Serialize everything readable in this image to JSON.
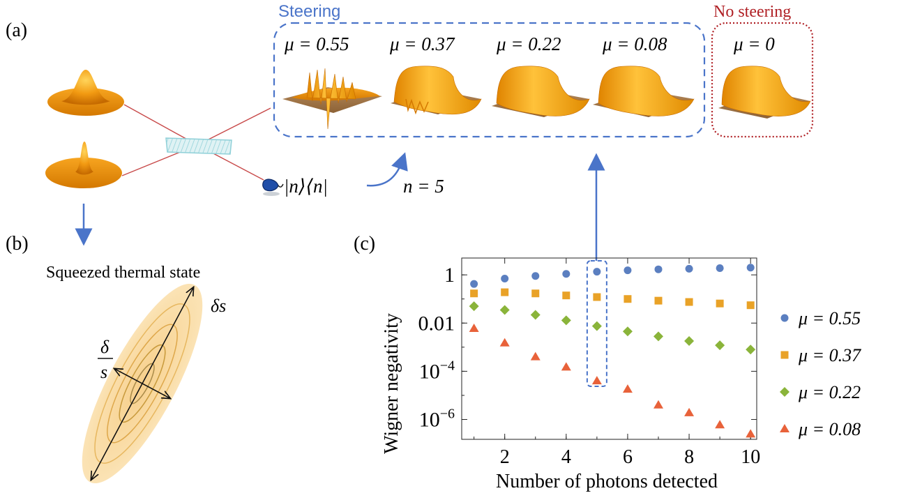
{
  "panels": {
    "a": "(a)",
    "b": "(b)",
    "c": "(c)"
  },
  "steering": {
    "label": "Steering",
    "mu_labels": [
      "μ = 0.55",
      "μ = 0.37",
      "μ = 0.22",
      "μ = 0.08"
    ],
    "color": "#4a74c9"
  },
  "no_steering": {
    "label": "No steering",
    "mu_label": "μ = 0",
    "color": "#b02025"
  },
  "detector": {
    "projector": "|n⟩⟨n|",
    "n_label": "n = 5"
  },
  "squeezed": {
    "title": "Squeezed thermal state",
    "delta_s": "δs",
    "delta_num": "δ",
    "delta_den": "s"
  },
  "colors": {
    "orange": "#f29a12",
    "orange_dark": "#c56a00",
    "beam": "#c84a4a",
    "splitter": "#8fd0d8",
    "arrow_blue": "#4a74c9"
  },
  "chart_data": {
    "type": "scatter",
    "xlabel": "Number of photons detected",
    "ylabel": "Wigner negativity",
    "yscale": "log",
    "xlim": [
      0.6,
      10.2
    ],
    "ylim": [
      1.5e-07,
      5
    ],
    "x_ticks": [
      2,
      4,
      6,
      8,
      10
    ],
    "y_ticks": [
      {
        "value": 1,
        "base": "1",
        "exp": ""
      },
      {
        "value": 0.01,
        "base": "0.01",
        "exp": ""
      },
      {
        "value": 0.0001,
        "base": "10",
        "exp": "−4"
      },
      {
        "value": 1e-06,
        "base": "10",
        "exp": "−6"
      }
    ],
    "highlight_x": 5,
    "x": [
      1,
      2,
      3,
      4,
      5,
      6,
      7,
      8,
      9,
      10
    ],
    "series": [
      {
        "name": "μ = 0.55",
        "marker": "circle",
        "color": "#5b7fc0",
        "values": [
          0.42,
          0.7,
          0.9,
          1.1,
          1.35,
          1.55,
          1.7,
          1.8,
          1.9,
          2.0
        ]
      },
      {
        "name": "μ = 0.37",
        "marker": "square",
        "color": "#e9a227",
        "values": [
          0.17,
          0.19,
          0.17,
          0.14,
          0.12,
          0.1,
          0.085,
          0.075,
          0.065,
          0.055
        ]
      },
      {
        "name": "μ = 0.22",
        "marker": "diamond",
        "color": "#8ab43a",
        "values": [
          0.05,
          0.035,
          0.022,
          0.013,
          0.0075,
          0.0045,
          0.0028,
          0.0018,
          0.0012,
          0.0008
        ]
      },
      {
        "name": "μ = 0.08",
        "marker": "triangle",
        "color": "#e8623a",
        "values": [
          0.006,
          0.0015,
          0.0004,
          0.00015,
          4e-05,
          1.8e-05,
          4e-06,
          1.9e-06,
          6e-07,
          2.5e-07
        ]
      }
    ]
  }
}
